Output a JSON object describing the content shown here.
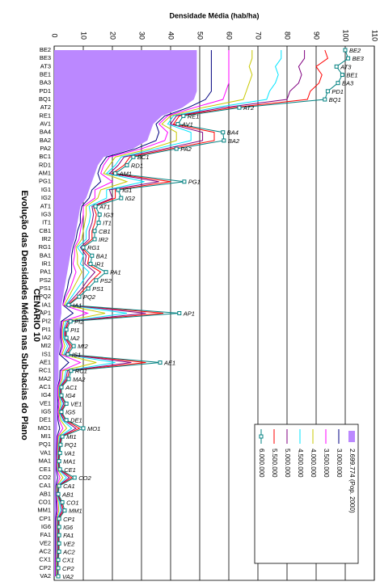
{
  "chart_data": {
    "type": "line",
    "orientation": "horizontal",
    "title": "Evolução das Densidades Médias nas Sub-bacias do Plano",
    "subtitle": "CENÁRIO 10",
    "y_label": "Densidade Média (hab/ha)",
    "ylim": [
      0,
      110
    ],
    "yticks": [
      0,
      10,
      20,
      30,
      40,
      50,
      60,
      70,
      80,
      90,
      100,
      110
    ],
    "grid": true,
    "legend": "bottom right",
    "categories": [
      "BE2",
      "BE3",
      "AT3",
      "BE1",
      "BA3",
      "PD1",
      "BQ1",
      "AT2",
      "RE1",
      "AV1",
      "BA4",
      "BA2",
      "PA2",
      "BC1",
      "RD1",
      "AM1",
      "PG1",
      "IG1",
      "IG2",
      "AT1",
      "IG3",
      "IT1",
      "CB1",
      "IR2",
      "RG1",
      "BA1",
      "IR1",
      "PA1",
      "PS2",
      "PS1",
      "PQ2",
      "IA1",
      "AP1",
      "PI2",
      "PI1",
      "IA2",
      "MI2",
      "IS1",
      "AE1",
      "RC1",
      "MA2",
      "AC1",
      "IG4",
      "VE1",
      "IG5",
      "DE1",
      "MO1",
      "MI1",
      "PQ1",
      "VA1",
      "MA1",
      "CE1",
      "CO2",
      "CA1",
      "AB1",
      "CO1",
      "MM1",
      "CP1",
      "IG6",
      "FA1",
      "VE2",
      "AC2",
      "CX1",
      "CP2",
      "VA2"
    ],
    "series": [
      {
        "name": "2.699.774 (Pop. 2000)",
        "color": "#bb88ff",
        "kind": "area",
        "values": [
          49,
          49,
          49,
          49,
          49,
          49,
          48,
          44,
          37,
          34,
          33,
          32,
          27,
          17,
          15,
          14,
          13,
          12,
          11,
          9,
          8.5,
          8,
          7.5,
          7,
          6,
          5.5,
          5,
          4.5,
          4,
          3.5,
          3,
          2.5,
          2.5,
          2,
          2,
          2,
          2,
          1.5,
          1.5,
          1.5,
          1.5,
          1,
          1,
          1,
          1,
          1,
          1,
          0.8,
          0.8,
          0.7,
          0.6,
          0.6,
          0.6,
          0.5,
          0.5,
          0.5,
          0.5,
          0.4,
          0.4,
          0.4,
          0.4,
          0.4,
          0.3,
          0.3,
          0.3
        ]
      },
      {
        "name": "3.000.000",
        "color": "#000080",
        "values": [
          54,
          54,
          54,
          54,
          54,
          54,
          52,
          46,
          38,
          35,
          36,
          35,
          28,
          18,
          16,
          15,
          16,
          13,
          12,
          9.5,
          9,
          9,
          8,
          7.5,
          6.5,
          6,
          6,
          6,
          5,
          4.5,
          3.5,
          3,
          6.5,
          2.4,
          2.2,
          2.2,
          2.5,
          1.8,
          5,
          2,
          1.9,
          1.2,
          1.2,
          1.3,
          1.2,
          1.3,
          1.9,
          1,
          0.9,
          0.8,
          0.7,
          0.7,
          1.2,
          0.6,
          0.6,
          0.7,
          0.8,
          0.5,
          0.5,
          0.5,
          0.5,
          0.5,
          0.4,
          0.4,
          0.4
        ]
      },
      {
        "name": "3.500.000",
        "color": "#ff00ff",
        "values": [
          60,
          60,
          60,
          60,
          60,
          59,
          58,
          48,
          39,
          36,
          39,
          38,
          30,
          19,
          17,
          16,
          20,
          14,
          14,
          10,
          10,
          9.5,
          9,
          8.5,
          7,
          7,
          6.5,
          7.5,
          6.5,
          5.5,
          4,
          3,
          11.5,
          2.8,
          2.5,
          2.5,
          3,
          2.2,
          9,
          2.5,
          2.3,
          1.3,
          1.3,
          1.7,
          1.3,
          1.7,
          3,
          1.2,
          1.1,
          1,
          0.8,
          0.9,
          2,
          0.8,
          0.7,
          1,
          1.2,
          0.7,
          0.7,
          0.7,
          0.7,
          0.7,
          0.5,
          0.5,
          0.5
        ]
      },
      {
        "name": "4.000.000",
        "color": "#c8c800",
        "values": [
          68,
          68,
          67,
          68,
          67,
          66,
          65,
          51,
          40,
          37,
          42,
          42,
          33,
          21,
          19,
          17,
          25,
          16,
          15,
          11,
          11,
          10.5,
          10,
          9.5,
          7.5,
          8,
          8,
          9.5,
          8,
          6.5,
          5,
          3.5,
          17.5,
          3.3,
          2.8,
          2.8,
          3.7,
          2.7,
          14.5,
          3,
          2.8,
          1.6,
          1.6,
          2.2,
          1.6,
          2.2,
          4.3,
          1.5,
          1.3,
          1.2,
          1,
          1.1,
          3,
          0.9,
          0.8,
          1.4,
          1.6,
          0.9,
          0.9,
          0.9,
          0.9,
          0.9,
          0.7,
          0.7,
          0.7
        ]
      },
      {
        "name": "4.500.000",
        "color": "#00e5ff",
        "values": [
          78,
          78,
          76,
          77,
          76,
          74,
          73,
          55,
          41,
          39,
          47,
          47,
          35,
          23,
          21,
          18,
          31,
          18,
          18,
          12,
          12.5,
          12,
          11,
          11,
          8,
          10,
          9,
          12,
          10,
          8,
          6,
          4,
          25,
          4,
          3.2,
          3.2,
          4.6,
          3.3,
          21,
          4,
          3.5,
          1.8,
          1.8,
          2.8,
          1.8,
          2.8,
          6,
          1.9,
          1.6,
          1.4,
          1.2,
          1.4,
          4.2,
          1.2,
          1,
          1.8,
          2.2,
          1.1,
          1.1,
          1.1,
          1.1,
          1.1,
          0.9,
          0.9,
          0.9
        ]
      },
      {
        "name": "5.000.000",
        "color": "#800080",
        "values": [
          86,
          86,
          84,
          85,
          84,
          81,
          80,
          58,
          42,
          40,
          51,
          51,
          38,
          24,
          22,
          19,
          36,
          19,
          20,
          13,
          13.5,
          13,
          12,
          12,
          9,
          11,
          10.5,
          14,
          11.5,
          9.5,
          7,
          4.3,
          31.5,
          4.6,
          3.6,
          3.6,
          5.4,
          3.8,
          26.5,
          4.6,
          4,
          2,
          2,
          3.3,
          2,
          3.3,
          7.5,
          2.2,
          1.8,
          1.6,
          1.4,
          1.6,
          5.2,
          1.4,
          1.1,
          2.2,
          2.7,
          1.3,
          1.3,
          1.3,
          1.3,
          1.3,
          1.1,
          1.1,
          1.1
        ]
      },
      {
        "name": "5.500.000",
        "color": "#ff0000",
        "values": [
          93,
          94,
          90,
          92,
          91,
          88,
          87,
          61,
          43,
          41,
          55,
          55,
          40,
          26,
          24,
          20,
          40,
          21,
          21,
          13.5,
          14.5,
          14,
          13,
          13,
          9.5,
          12,
          11.5,
          16,
          13,
          10.5,
          8,
          4.7,
          37.5,
          5.1,
          3.9,
          3.9,
          6,
          4.3,
          31.5,
          5.2,
          4.5,
          2.3,
          2.3,
          3.8,
          2.3,
          3.8,
          8.7,
          2.5,
          2,
          1.8,
          1.5,
          1.8,
          6.1,
          1.5,
          1.3,
          2.5,
          3.2,
          1.5,
          1.5,
          1.5,
          1.5,
          1.5,
          1.2,
          1.2,
          1.2
        ]
      },
      {
        "name": "6.000.000",
        "color": "#008080",
        "marker": "square",
        "data_labels": true,
        "values": [
          100,
          101,
          97,
          99,
          97.5,
          94,
          93,
          63.6,
          44.4,
          42.5,
          58,
          58.3,
          42,
          27.2,
          25,
          21,
          44.7,
          22,
          23,
          14.2,
          15.6,
          15.3,
          13.9,
          13.9,
          10,
          13,
          12.5,
          17.8,
          14.4,
          11.7,
          8.6,
          5,
          43,
          5.6,
          4.2,
          4.2,
          6.7,
          4.7,
          36.4,
          5.8,
          5,
          2.5,
          2.5,
          4.2,
          2.5,
          4.2,
          10,
          2.8,
          2.2,
          2,
          1.7,
          2,
          7,
          1.7,
          1.4,
          2.8,
          3.6,
          1.7,
          1.7,
          1.7,
          1.7,
          1.7,
          1.4,
          1.4,
          1.4
        ]
      }
    ]
  }
}
